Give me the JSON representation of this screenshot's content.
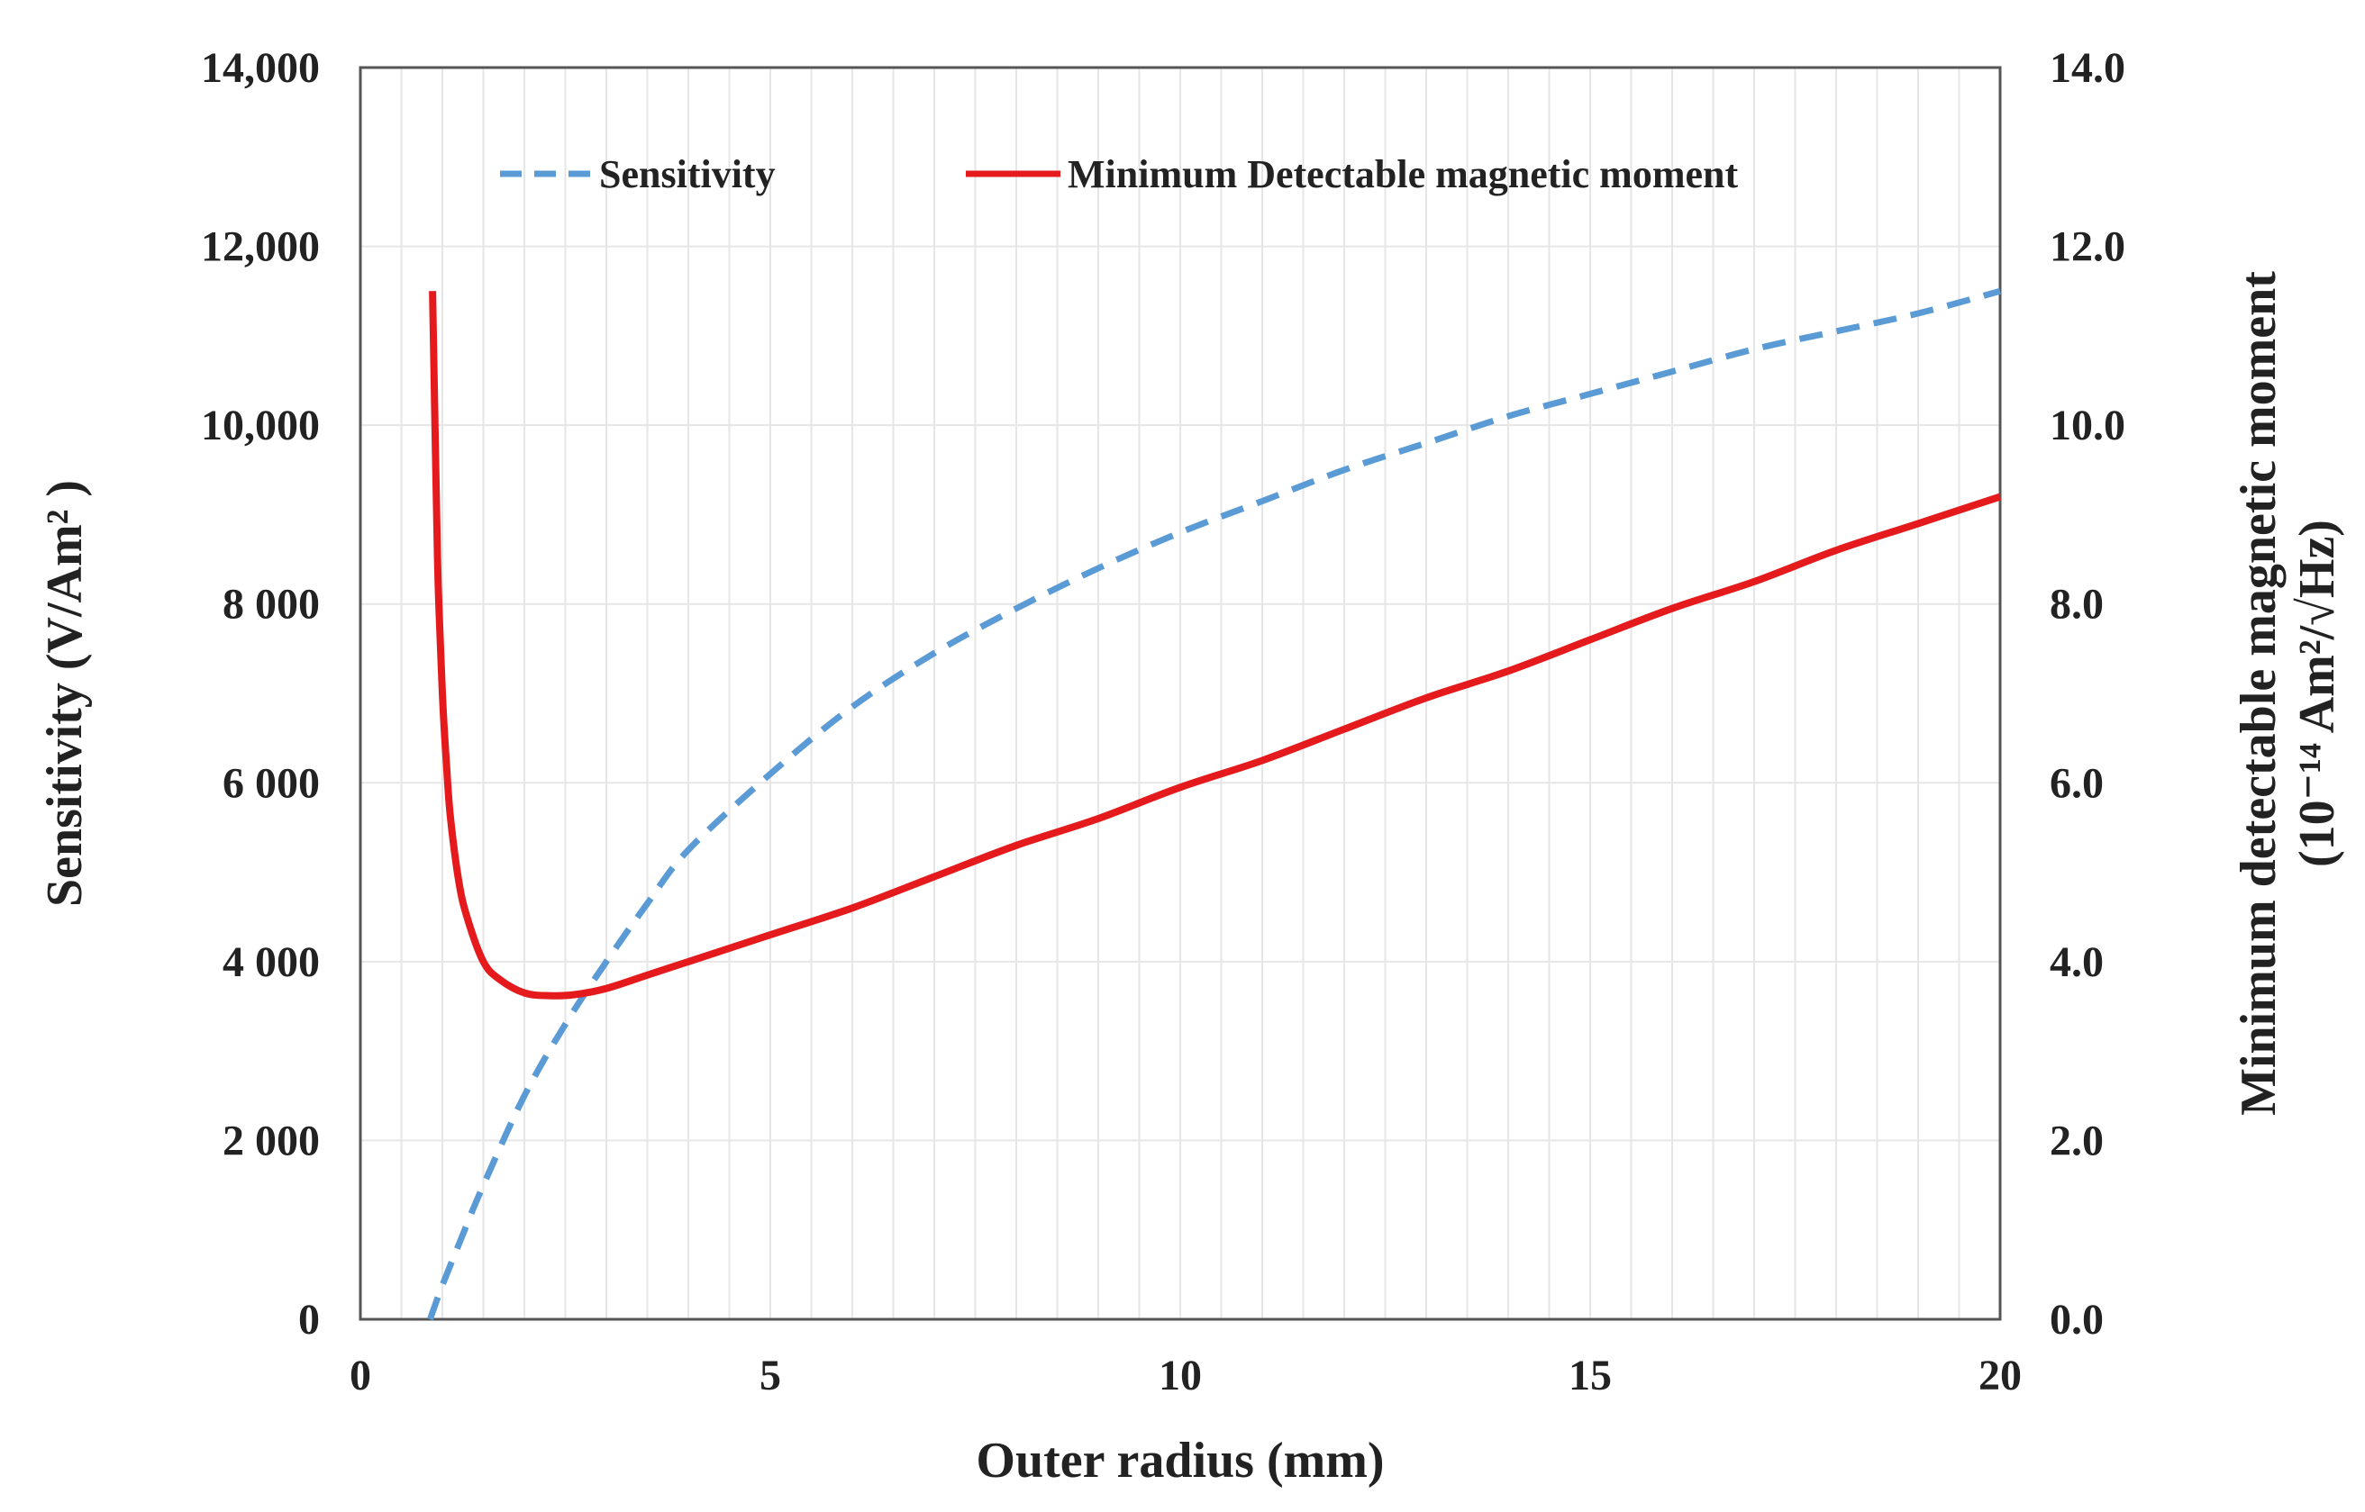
{
  "chart_data": {
    "type": "line",
    "xlabel": "Outer radius (mm)",
    "ylabel_left": "Sensitivity (V/Am² )",
    "ylabel_right_line1": "Minimum detectable magnetic moment",
    "ylabel_right_line2": "(10⁻¹⁴ Am²/√Hz)",
    "xlim": [
      0,
      20
    ],
    "ylim_left": [
      0,
      14000
    ],
    "ylim_right": [
      0,
      14
    ],
    "grid": true,
    "legend_position": "top",
    "x_ticks": [
      "0",
      "5",
      "10",
      "15",
      "20"
    ],
    "y_left_ticks": [
      "0",
      "2 000",
      "4 000",
      "6 000",
      "8 000",
      "10,000",
      "12,000",
      "14,000"
    ],
    "y_right_ticks": [
      "0.0",
      "2.0",
      "4.0",
      "6.0",
      "8.0",
      "10.0",
      "12.0",
      "14.0"
    ],
    "series": [
      {
        "name": "Sensitivity",
        "axis": "left",
        "style": "dashed",
        "color": "#5b9bd5",
        "x": [
          0.85,
          1.0,
          1.25,
          1.5,
          2.0,
          2.5,
          3.0,
          3.5,
          4.0,
          5.0,
          6.0,
          7.0,
          8.0,
          9.0,
          10.0,
          11.0,
          12.0,
          13.0,
          14.0,
          15.0,
          16.0,
          17.0,
          18.0,
          19.0,
          20.0
        ],
        "y": [
          0,
          380,
          950,
          1500,
          2500,
          3300,
          4000,
          4650,
          5250,
          6100,
          6850,
          7450,
          7950,
          8400,
          8800,
          9150,
          9500,
          9800,
          10100,
          10350,
          10600,
          10850,
          11050,
          11250,
          11500
        ]
      },
      {
        "name": "Minimum Detectable magnetic moment",
        "axis": "right",
        "style": "solid",
        "color": "#e41a1c",
        "x": [
          0.88,
          0.92,
          0.95,
          1.0,
          1.05,
          1.1,
          1.2,
          1.3,
          1.5,
          1.7,
          2.0,
          2.3,
          2.6,
          3.0,
          3.5,
          4.0,
          5.0,
          6.0,
          7.0,
          8.0,
          9.0,
          10.0,
          11.0,
          12.0,
          13.0,
          14.0,
          15.0,
          16.0,
          17.0,
          18.0,
          19.0,
          20.0
        ],
        "y": [
          11.5,
          9.5,
          8.2,
          7.0,
          6.2,
          5.6,
          4.9,
          4.5,
          4.0,
          3.8,
          3.65,
          3.62,
          3.63,
          3.7,
          3.85,
          4.0,
          4.3,
          4.6,
          4.95,
          5.3,
          5.6,
          5.95,
          6.25,
          6.6,
          6.95,
          7.25,
          7.6,
          7.95,
          8.25,
          8.6,
          8.9,
          9.2
        ]
      }
    ]
  }
}
